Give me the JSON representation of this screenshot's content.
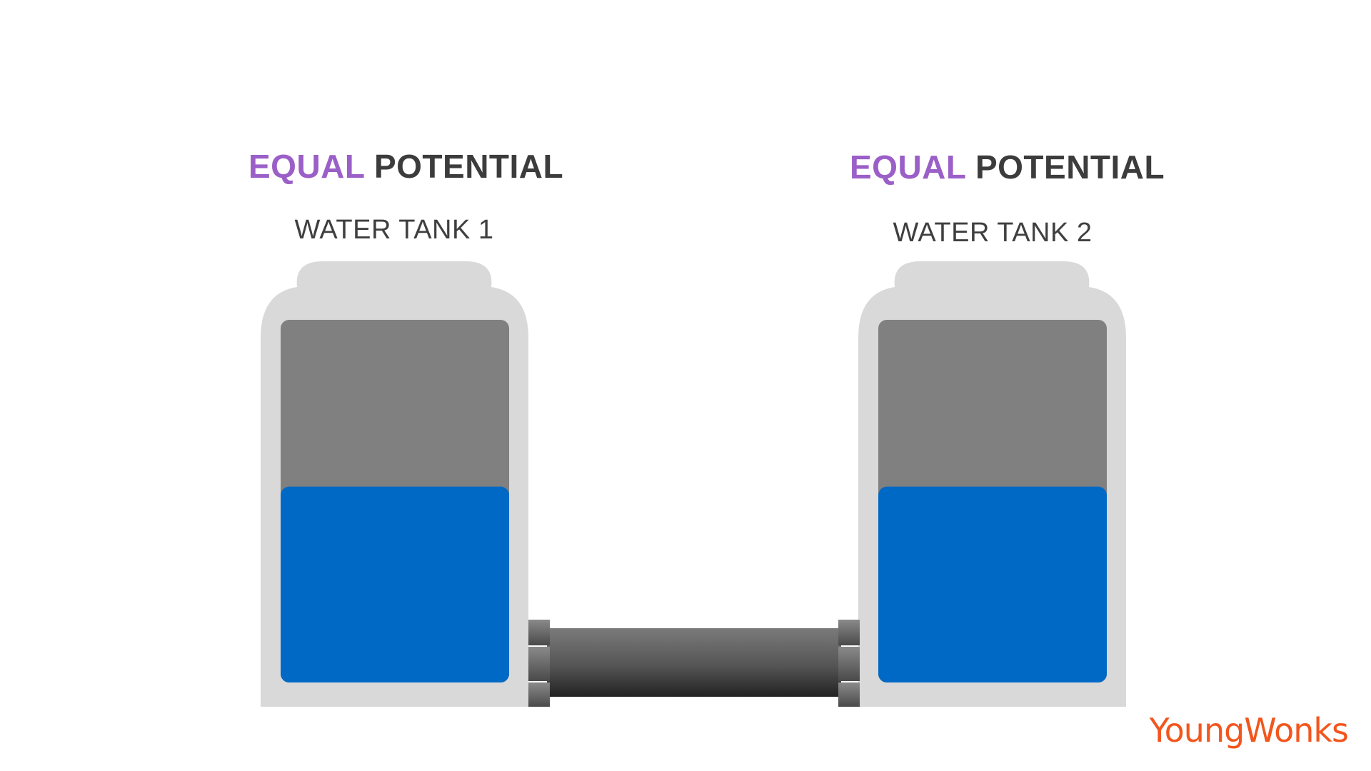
{
  "tank1": {
    "heading_accent": "EQUAL",
    "heading_rest": "POTENTIAL",
    "label": "WATER TANK 1",
    "fill_fraction": 0.54
  },
  "tank2": {
    "heading_accent": "EQUAL",
    "heading_rest": "POTENTIAL",
    "label": "WATER TANK 2",
    "fill_fraction": 0.54
  },
  "logo": {
    "text": "YoungWonks"
  },
  "colors": {
    "accent": "#9B5FC8",
    "heading": "#3c3c3c",
    "tank_body": "#d9d9d9",
    "tank_empty": "#808080",
    "water": "#0069C6",
    "pipe": "#4d4d4d",
    "logo": "#F2561D"
  }
}
